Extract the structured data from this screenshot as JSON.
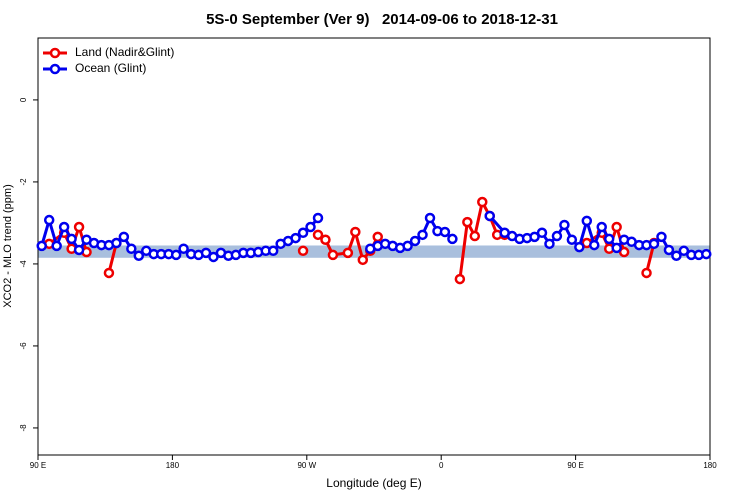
{
  "chart_data": {
    "type": "line",
    "title": "5S-0 September (Ver 9)   2014-09-06 to 2018-12-31",
    "x_label": "Longitude (deg E)",
    "y_label": "XCO2 - MLO trend (ppm)",
    "xlim": [
      90,
      540
    ],
    "xticks": [
      {
        "value": 90,
        "label": "90 E"
      },
      180,
      {
        "value": 270,
        "label": "90 W"
      },
      {
        "value": 360,
        "label": "0"
      },
      {
        "value": 450,
        "label": "90 E"
      },
      {
        "value": 540,
        "label": "180"
      }
    ],
    "ylim": [
      -8.66,
      1.51
    ],
    "yticks": [
      0,
      -2,
      -4,
      -6,
      -8
    ],
    "band_range": [
      -3.85,
      -3.55
    ],
    "band_color": "#a9bfdd",
    "legend": "top-left",
    "series": [
      {
        "name": "Land (Nadir&Glint)",
        "color": "#ee0000",
        "x": [
          97.5,
          107.5,
          112.5,
          117.5,
          122.5,
          null,
          137.5,
          142.5,
          null,
          267.5,
          null,
          277.5,
          282.5,
          287.5,
          297.5,
          302.5,
          307.5,
          312.5,
          317.5,
          null,
          372.5,
          377.5,
          382.5,
          387.5,
          392.5,
          397.5,
          402.5,
          null,
          457.5,
          467.5,
          472.5,
          477.5,
          482.5,
          null,
          497.5,
          502.5
        ],
        "values": [
          -3.51,
          -3.24,
          -3.63,
          -3.1,
          -3.71,
          null,
          -4.22,
          -3.49,
          null,
          -3.68,
          null,
          -3.29,
          -3.41,
          -3.78,
          -3.73,
          -3.22,
          -3.9,
          -3.68,
          -3.34,
          null,
          -4.37,
          -2.98,
          -3.32,
          -2.49,
          -2.83,
          -3.29,
          -3.29,
          null,
          -3.49,
          -3.24,
          -3.63,
          -3.1,
          -3.71,
          null,
          -4.22,
          -3.49
        ]
      },
      {
        "name": "Ocean (Glint)",
        "color": "#0000ee",
        "x": [
          92.5,
          97.5,
          102.5,
          107.5,
          112.5,
          117.5,
          122.5,
          127.5,
          132.5,
          137.5,
          142.5,
          147.5,
          152.5,
          157.5,
          162.5,
          167.5,
          172.5,
          177.5,
          182.5,
          187.5,
          192.5,
          197.5,
          202.5,
          207.5,
          212.5,
          217.5,
          222.5,
          227.5,
          232.5,
          237.5,
          242.5,
          247.5,
          252.5,
          257.5,
          262.5,
          267.5,
          272.5,
          277.5,
          null,
          312.5,
          317.5,
          322.5,
          327.5,
          332.5,
          337.5,
          342.5,
          347.5,
          352.5,
          357.5,
          362.5,
          367.5,
          null,
          392.5,
          402.5,
          407.5,
          412.5,
          417.5,
          422.5,
          427.5,
          432.5,
          437.5,
          442.5,
          447.5,
          452.5,
          457.5,
          462.5,
          467.5,
          472.5,
          477.5,
          482.5,
          487.5,
          492.5,
          497.5,
          502.5,
          507.5,
          512.5,
          517.5,
          522.5,
          527.5,
          532.5,
          537.5
        ],
        "values": [
          -3.56,
          -2.93,
          -3.56,
          -3.1,
          -3.39,
          -3.66,
          -3.41,
          -3.49,
          -3.54,
          -3.54,
          -3.49,
          -3.34,
          -3.63,
          -3.8,
          -3.68,
          -3.76,
          -3.76,
          -3.76,
          -3.78,
          -3.63,
          -3.76,
          -3.78,
          -3.73,
          -3.83,
          -3.73,
          -3.8,
          -3.78,
          -3.73,
          -3.73,
          -3.71,
          -3.68,
          -3.68,
          -3.51,
          -3.44,
          -3.37,
          -3.24,
          -3.1,
          -2.88,
          null,
          -3.63,
          -3.56,
          -3.51,
          -3.56,
          -3.61,
          -3.56,
          -3.44,
          -3.29,
          -2.88,
          -3.2,
          -3.22,
          -3.39,
          null,
          -2.83,
          -3.24,
          -3.32,
          -3.39,
          -3.37,
          -3.34,
          -3.24,
          -3.51,
          -3.32,
          -3.05,
          -3.41,
          -3.59,
          -2.95,
          -3.54,
          -3.1,
          -3.39,
          -3.61,
          -3.41,
          -3.46,
          -3.54,
          -3.54,
          -3.51,
          -3.34,
          -3.66,
          -3.8,
          -3.68,
          -3.78,
          -3.78,
          -3.76
        ]
      }
    ]
  }
}
